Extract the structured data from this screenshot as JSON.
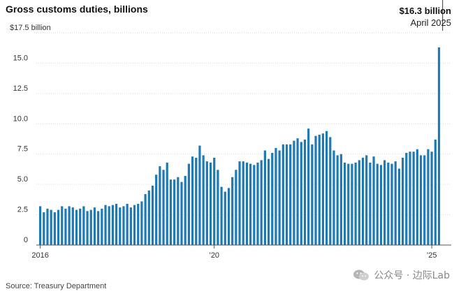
{
  "chart_data": {
    "type": "bar",
    "title": "Gross customs duties, billions",
    "xlabel": "",
    "ylabel": "",
    "ylim": [
      0,
      17.5
    ],
    "y_ticks": [
      {
        "value": 0,
        "label": "0"
      },
      {
        "value": 2.5,
        "label": "2.5"
      },
      {
        "value": 5,
        "label": "5.0"
      },
      {
        "value": 7.5,
        "label": "7.5"
      },
      {
        "value": 10,
        "label": "10.0"
      },
      {
        "value": 12.5,
        "label": "12.5"
      },
      {
        "value": 15,
        "label": "15.0"
      },
      {
        "value": 17.5,
        "label": "$17.5 billion"
      }
    ],
    "x_ticks": [
      {
        "date": "2016-01",
        "label": "2016"
      },
      {
        "date": "2020-01",
        "label": "’20"
      },
      {
        "date": "2025-01",
        "label": "’25"
      }
    ],
    "grid": true,
    "legend": "none",
    "color": "#1f7ab3",
    "annotation": {
      "date": "2025-04",
      "value_label": "$16.3 billion",
      "date_label": "April 2025"
    },
    "start_month": "2016-01",
    "values": [
      3.2,
      2.7,
      3.0,
      2.9,
      2.7,
      2.9,
      3.2,
      3.0,
      3.2,
      3.1,
      2.9,
      3.0,
      3.2,
      2.8,
      2.9,
      3.1,
      2.8,
      3.0,
      3.3,
      3.2,
      3.3,
      3.4,
      3.1,
      3.2,
      3.4,
      3.1,
      3.3,
      3.4,
      3.6,
      4.2,
      4.5,
      4.9,
      5.8,
      6.5,
      6.2,
      6.8,
      5.4,
      5.4,
      5.6,
      5.2,
      5.7,
      6.7,
      7.3,
      7.2,
      8.2,
      7.4,
      6.9,
      6.8,
      7.2,
      6.2,
      4.8,
      4.4,
      4.7,
      5.6,
      6.2,
      6.9,
      6.9,
      6.8,
      6.7,
      6.6,
      6.8,
      7.0,
      7.8,
      7.1,
      7.6,
      8.0,
      7.8,
      8.3,
      8.3,
      8.3,
      8.6,
      8.8,
      8.5,
      8.7,
      9.6,
      8.3,
      9.0,
      9.1,
      9.2,
      9.4,
      8.9,
      7.8,
      7.4,
      7.5,
      6.8,
      6.7,
      6.7,
      6.8,
      7.0,
      7.2,
      7.4,
      6.8,
      7.3,
      6.7,
      6.6,
      7.0,
      6.8,
      6.7,
      6.9,
      6.3,
      7.2,
      7.6,
      7.7,
      7.7,
      7.9,
      7.4,
      7.4,
      7.9,
      7.7,
      8.7,
      16.3
    ],
    "source": "Source: Treasury Department"
  },
  "watermark": {
    "text": "公众号 · 边际Lab",
    "icon": "wechat-icon"
  }
}
